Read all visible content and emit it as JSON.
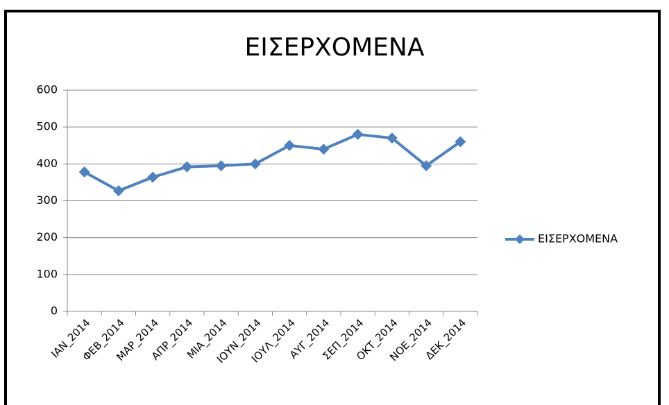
{
  "chart_data": {
    "type": "line",
    "title": "ΕΙΣΕΡΧΟΜΕΝΑ",
    "categories": [
      "IAN_2014",
      "ΦΕΒ_2014",
      "ΜΑΡ_2014",
      "ΑΠΡ_2014",
      "ΜΙΑ_2014",
      "ΙΟΥΝ_2014",
      "ΙΟΥΛ_2014",
      "ΑΥΓ_2014",
      "ΣΕΠ_2014",
      "ΟΚΤ_2014",
      "ΝΟΕ_2014",
      "ΔΕΚ_2014"
    ],
    "series": [
      {
        "name": "ΕΙΣΕΡΧΟΜΕΝΑ",
        "color": "#4f81bd",
        "values": [
          378,
          327,
          364,
          392,
          395,
          400,
          450,
          440,
          480,
          470,
          395,
          460
        ]
      }
    ],
    "ylim": [
      0,
      600
    ],
    "yticks": [
      0,
      100,
      200,
      300,
      400,
      500,
      600
    ],
    "grid": true,
    "legend": "right"
  }
}
